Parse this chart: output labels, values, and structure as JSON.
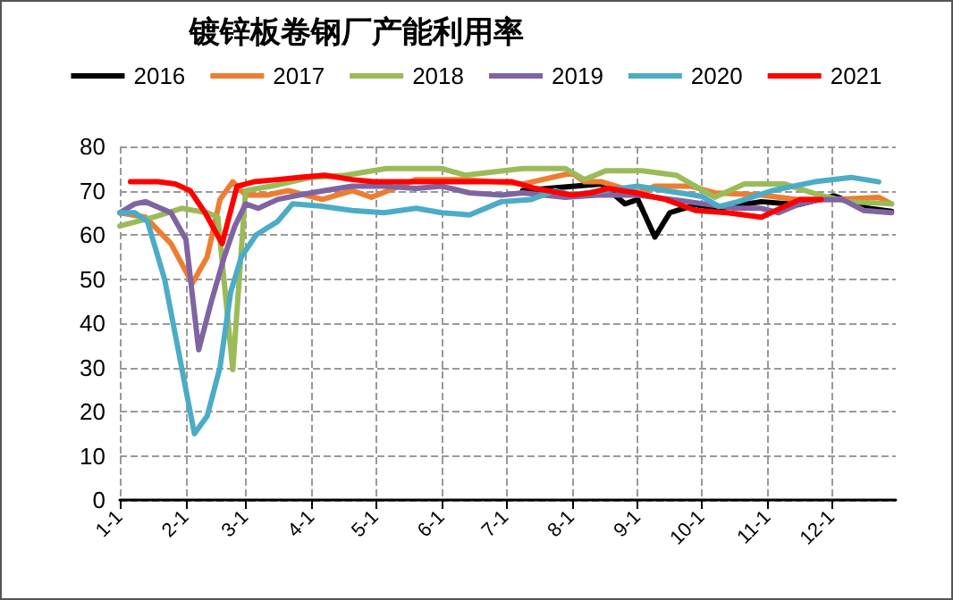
{
  "chart_data": {
    "type": "line",
    "title": "镀锌板卷钢厂产能利用率",
    "xlim": [
      "--01-01",
      "--12-31"
    ],
    "xticks": [
      {
        "value": "--01-01",
        "label": "1-1"
      },
      {
        "value": "--02-01",
        "label": "2-1"
      },
      {
        "value": "--03-01",
        "label": "3-1"
      },
      {
        "value": "--04-01",
        "label": "4-1"
      },
      {
        "value": "--05-01",
        "label": "5-1"
      },
      {
        "value": "--06-01",
        "label": "6-1"
      },
      {
        "value": "--07-01",
        "label": "7-1"
      },
      {
        "value": "--08-01",
        "label": "8-1"
      },
      {
        "value": "--09-01",
        "label": "9-1"
      },
      {
        "value": "--10-01",
        "label": "10-1"
      },
      {
        "value": "--11-01",
        "label": "11-1"
      },
      {
        "value": "--12-01",
        "label": "12-1"
      }
    ],
    "ylim": [
      0,
      80
    ],
    "yticks": [
      0,
      10,
      20,
      30,
      40,
      50,
      60,
      70,
      80
    ],
    "grid": true,
    "legend": "top",
    "marker": "none",
    "line_style": "solid",
    "series": [
      {
        "name": "2016",
        "color": "#000000",
        "x": [
          "--07-09",
          "--07-21",
          "--08-15",
          "--08-26",
          "--09-01",
          "--09-09",
          "--09-16",
          "--09-28",
          "--10-09",
          "--10-29",
          "--11-15",
          "--12-02",
          "--12-18",
          "--12-29"
        ],
        "values": [
          70,
          70.5,
          71.5,
          67,
          68,
          59.5,
          65,
          66.8,
          66,
          67.5,
          66.8,
          68.8,
          66,
          65.3
        ]
      },
      {
        "name": "2017",
        "color": "#ed7d31",
        "x": [
          "--01-01",
          "--01-13",
          "--01-25",
          "--02-04",
          "--02-11",
          "--02-17",
          "--02-23",
          "--03-01",
          "--03-11",
          "--03-21",
          "--04-06",
          "--04-20",
          "--04-29",
          "--05-20",
          "--06-12",
          "--07-09",
          "--08-01",
          "--08-07",
          "--08-15",
          "--09-01",
          "--09-09",
          "--09-26",
          "--10-07",
          "--10-29",
          "--11-15",
          "--12-02",
          "--12-23",
          "--12-29"
        ],
        "values": [
          65,
          64,
          58,
          49,
          55,
          68,
          72,
          69,
          69,
          70,
          68,
          70,
          68.5,
          72.5,
          72.5,
          71.5,
          74,
          72,
          72,
          69.5,
          71,
          71,
          69.5,
          69,
          68,
          68,
          68.5,
          67
        ]
      },
      {
        "name": "2018",
        "color": "#9bbb59",
        "x": [
          "--01-01",
          "--01-17",
          "--01-30",
          "--02-11",
          "--02-16",
          "--02-23",
          "--03-01",
          "--03-13",
          "--04-01",
          "--04-17",
          "--05-06",
          "--06-01",
          "--06-12",
          "--07-09",
          "--07-23",
          "--07-29",
          "--08-07",
          "--08-17",
          "--09-03",
          "--09-19",
          "--10-07",
          "--10-21",
          "--11-09",
          "--11-25",
          "--12-09",
          "--12-29"
        ],
        "values": [
          62,
          64,
          66,
          65,
          64,
          29.5,
          70,
          71,
          73,
          73.5,
          75,
          75,
          73.5,
          75,
          75,
          75,
          72.5,
          74.5,
          74.5,
          73.5,
          68.5,
          71.5,
          71.5,
          69,
          67.5,
          67
        ]
      },
      {
        "name": "2019",
        "color": "#8064a2",
        "x": [
          "--01-01",
          "--01-08",
          "--01-13",
          "--01-25",
          "--02-01",
          "--02-07",
          "--02-13",
          "--02-19",
          "--02-24",
          "--03-01",
          "--03-07",
          "--03-16",
          "--03-26",
          "--04-07",
          "--04-20",
          "--05-05",
          "--05-20",
          "--06-01",
          "--06-14",
          "--06-29",
          "--07-09",
          "--07-29",
          "--08-13",
          "--09-01",
          "--09-17",
          "--10-02",
          "--10-17",
          "--10-29",
          "--11-06",
          "--11-16",
          "--11-26",
          "--12-06",
          "--12-16",
          "--12-29"
        ],
        "values": [
          65,
          67,
          67.5,
          65,
          59,
          34,
          45,
          55,
          62,
          67,
          66,
          68,
          69,
          70,
          71,
          71,
          70.5,
          71,
          69.5,
          69,
          69.5,
          68.5,
          69,
          69,
          68,
          67,
          66,
          66,
          65,
          67,
          68,
          68,
          65.5,
          65
        ]
      },
      {
        "name": "2020",
        "color": "#4bacc6",
        "x": [
          "--01-01",
          "--01-08",
          "--01-14",
          "--01-22",
          "--01-30",
          "--02-05",
          "--02-11",
          "--02-17",
          "--02-22",
          "--02-27",
          "--03-06",
          "--03-16",
          "--03-23",
          "--04-05",
          "--04-20",
          "--05-05",
          "--05-20",
          "--06-01",
          "--06-14",
          "--06-29",
          "--07-13",
          "--07-24",
          "--08-01",
          "--09-01",
          "--10-01",
          "--10-09",
          "--10-18",
          "--11-03",
          "--11-23",
          "--12-10",
          "--12-23"
        ],
        "values": [
          65,
          65,
          63,
          50,
          30,
          15,
          19,
          30,
          47,
          55,
          60,
          63,
          67,
          66.5,
          65.5,
          65,
          66,
          65,
          64.5,
          67.5,
          68,
          70,
          69,
          71,
          68.7,
          66.4,
          67.5,
          70,
          72,
          73,
          72
        ]
      },
      {
        "name": "2021",
        "color": "#ff0000",
        "x": [
          "--01-06",
          "--01-13",
          "--01-19",
          "--01-27",
          "--02-03",
          "--02-10",
          "--02-18",
          "--02-25",
          "--03-05",
          "--03-16",
          "--03-26",
          "--04-07",
          "--04-20",
          "--04-30",
          "--05-15",
          "--05-30",
          "--06-14",
          "--06-29",
          "--07-04",
          "--07-15",
          "--08-01",
          "--08-10",
          "--08-18",
          "--08-31",
          "--09-14",
          "--09-28",
          "--10-13",
          "--10-29",
          "--11-07",
          "--11-16",
          "--11-26"
        ],
        "values": [
          72,
          72,
          72,
          71.5,
          70,
          65,
          58,
          71,
          72,
          72.5,
          73,
          73.5,
          72.5,
          72,
          72,
          72,
          72,
          72,
          72,
          70.5,
          69,
          69.5,
          70.5,
          69.5,
          68,
          65.5,
          65,
          64,
          66,
          68,
          68
        ]
      }
    ]
  }
}
